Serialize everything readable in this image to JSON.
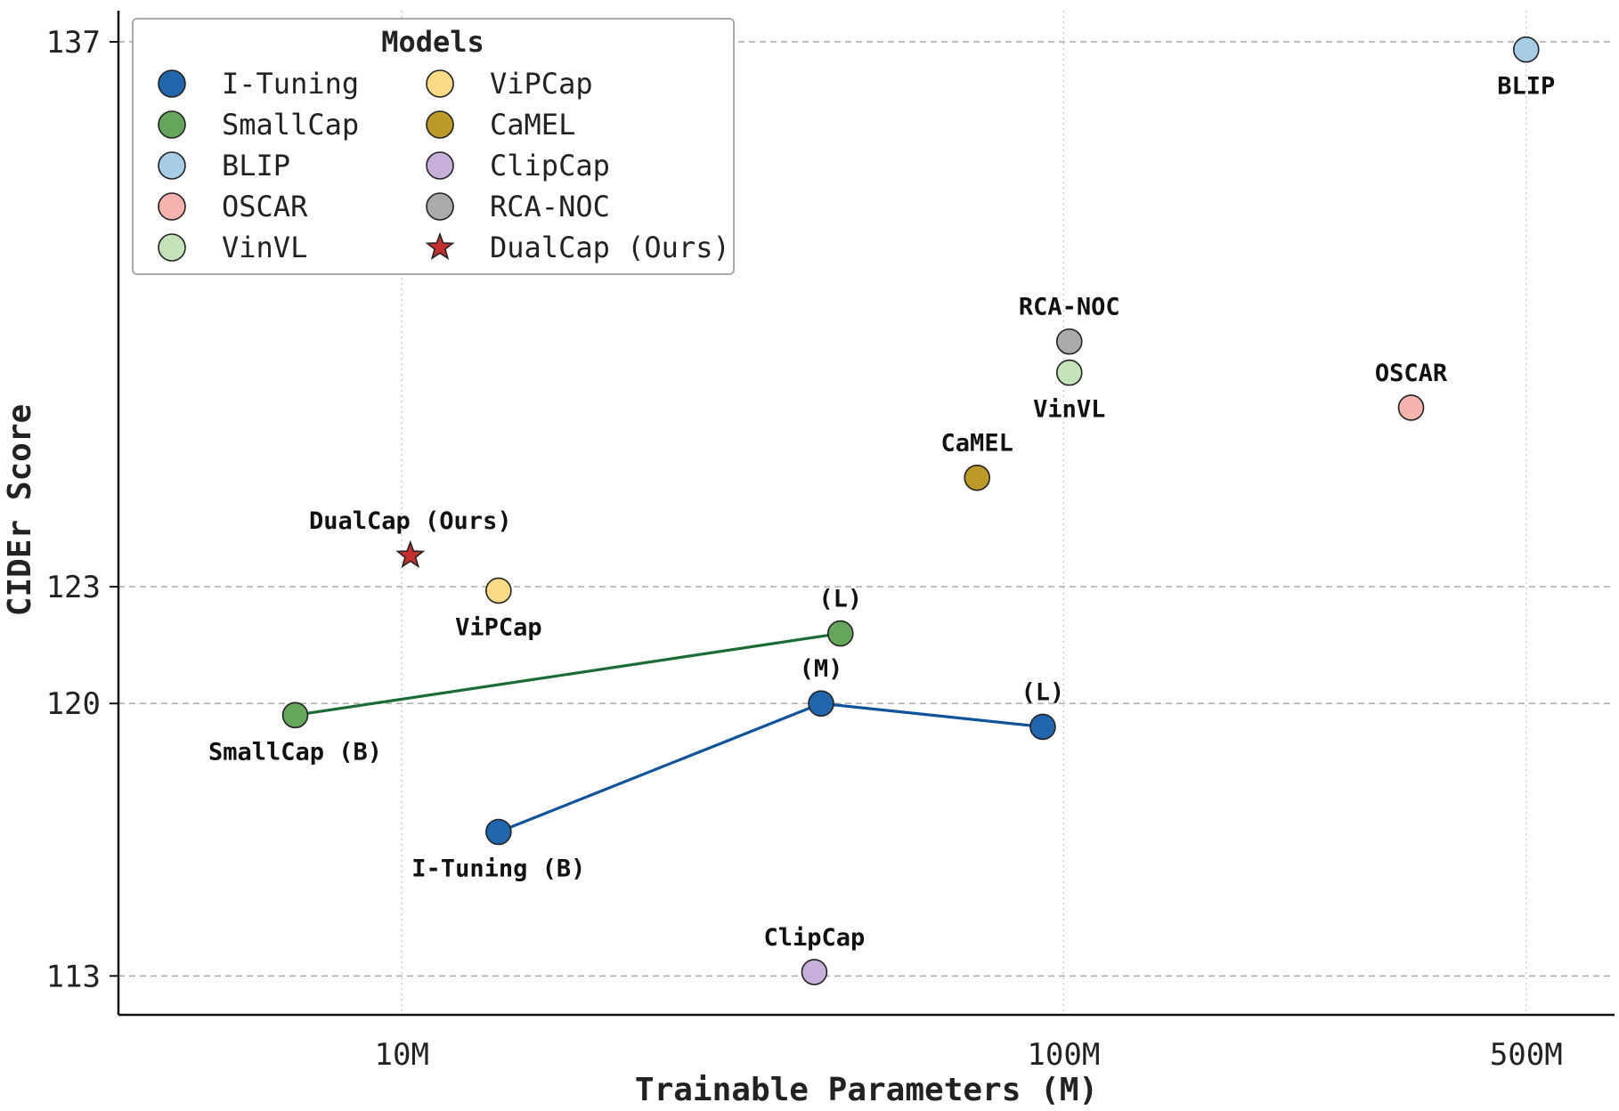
{
  "chart_data": {
    "type": "scatter",
    "title": "",
    "xlabel": "Trainable Parameters (M)",
    "ylabel": "CIDEr Score",
    "xscale": "log",
    "xlim": [
      3.73,
      680
    ],
    "ylim": [
      112.0,
      137.8
    ],
    "x_ticks": [
      {
        "value": 10,
        "label": "10M"
      },
      {
        "value": 100,
        "label": "100M"
      },
      {
        "value": 500,
        "label": "500M"
      }
    ],
    "y_ticks": [
      {
        "value": 113,
        "label": "113"
      },
      {
        "value": 120,
        "label": "120"
      },
      {
        "value": 123,
        "label": "123"
      },
      {
        "value": 137,
        "label": "137"
      }
    ],
    "grid": true,
    "legend": {
      "title": "Models",
      "placement": "top-left",
      "entries": [
        {
          "name": "I-Tuning",
          "color": "#2166ac",
          "marker": "circle"
        },
        {
          "name": "SmallCap",
          "color": "#66a65c",
          "marker": "circle"
        },
        {
          "name": "BLIP",
          "color": "#a6cce6",
          "marker": "circle"
        },
        {
          "name": "OSCAR",
          "color": "#f7b3ae",
          "marker": "circle"
        },
        {
          "name": "VinVL",
          "color": "#c4e3b8",
          "marker": "circle"
        },
        {
          "name": "ViPCap",
          "color": "#fbdb86",
          "marker": "circle"
        },
        {
          "name": "CaMEL",
          "color": "#bc9a2a",
          "marker": "circle"
        },
        {
          "name": "ClipCap",
          "color": "#c6afd9",
          "marker": "circle"
        },
        {
          "name": "RCA-NOC",
          "color": "#aaaaaa",
          "marker": "circle"
        },
        {
          "name": "DualCap (Ours)",
          "color": "#c62f2f",
          "marker": "star"
        }
      ]
    },
    "series": [
      {
        "name": "I-Tuning",
        "color": "#2166ac",
        "line_color": "#10539a",
        "connected": true,
        "points": [
          {
            "x": 14.0,
            "y": 116.7,
            "label": "I-Tuning (B)",
            "label_pos": "below"
          },
          {
            "x": 43.0,
            "y": 120.0,
            "label": "(M)",
            "label_pos": "above"
          },
          {
            "x": 93.0,
            "y": 119.4,
            "label": "(L)",
            "label_pos": "above"
          }
        ]
      },
      {
        "name": "SmallCap",
        "color": "#66a65c",
        "line_color": "#1b6b34",
        "connected": true,
        "points": [
          {
            "x": 6.9,
            "y": 119.7,
            "label": "SmallCap (B)",
            "label_pos": "below"
          },
          {
            "x": 46.0,
            "y": 121.8,
            "label": "(L)",
            "label_pos": "above"
          }
        ]
      },
      {
        "name": "BLIP",
        "color": "#a6cce6",
        "connected": false,
        "points": [
          {
            "x": 500.0,
            "y": 136.8,
            "label": "BLIP",
            "label_pos": "below"
          }
        ]
      },
      {
        "name": "OSCAR",
        "color": "#f7b3ae",
        "connected": false,
        "points": [
          {
            "x": 335.0,
            "y": 127.6,
            "label": "OSCAR",
            "label_pos": "above"
          }
        ]
      },
      {
        "name": "VinVL",
        "color": "#c4e3b8",
        "connected": false,
        "points": [
          {
            "x": 102.0,
            "y": 128.5,
            "label": "VinVL",
            "label_pos": "below"
          }
        ]
      },
      {
        "name": "ViPCap",
        "color": "#fbdb86",
        "connected": false,
        "points": [
          {
            "x": 14.0,
            "y": 122.9,
            "label": "ViPCap",
            "label_pos": "below"
          }
        ]
      },
      {
        "name": "CaMEL",
        "color": "#bc9a2a",
        "connected": false,
        "points": [
          {
            "x": 74.0,
            "y": 125.8,
            "label": "CaMEL",
            "label_pos": "above"
          }
        ]
      },
      {
        "name": "ClipCap",
        "color": "#c6afd9",
        "connected": false,
        "points": [
          {
            "x": 42.0,
            "y": 113.1,
            "label": "ClipCap",
            "label_pos": "above"
          }
        ]
      },
      {
        "name": "RCA-NOC",
        "color": "#aaaaaa",
        "connected": false,
        "points": [
          {
            "x": 102.0,
            "y": 129.3,
            "label": "RCA-NOC",
            "label_pos": "above"
          }
        ]
      },
      {
        "name": "DualCap (Ours)",
        "color": "#c62f2f",
        "marker": "star",
        "connected": false,
        "label_color": "#c0282d",
        "points": [
          {
            "x": 10.3,
            "y": 123.8,
            "label": "DualCap (Ours)",
            "label_pos": "above"
          }
        ]
      }
    ]
  }
}
